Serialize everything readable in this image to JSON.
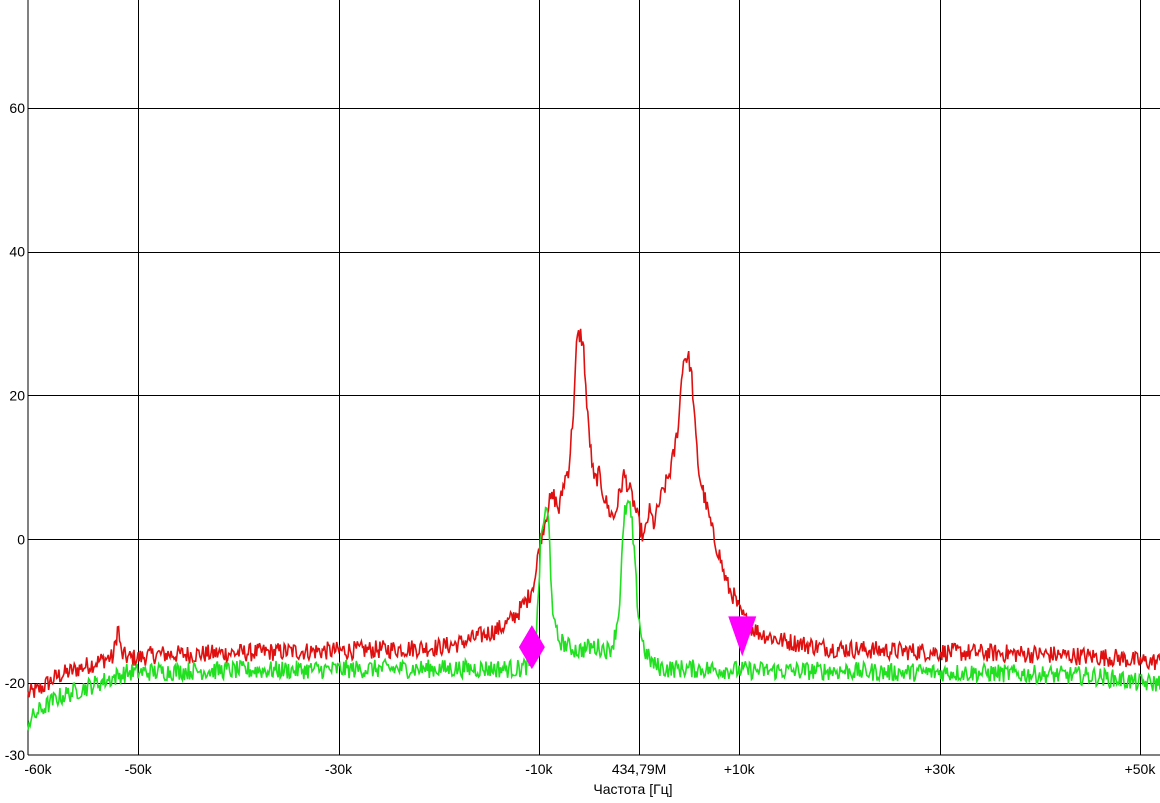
{
  "chart_data": {
    "type": "line",
    "xlabel": "Частота [Гц]",
    "ylabel": "",
    "xlim": [
      -61,
      52
    ],
    "ylim": [
      -30,
      75
    ],
    "grid": true,
    "x_ticks": [
      {
        "value": -60,
        "label": "-60k"
      },
      {
        "value": -50,
        "label": "-50k"
      },
      {
        "value": -30,
        "label": "-30k"
      },
      {
        "value": -10,
        "label": "-10k"
      },
      {
        "value": 0,
        "label": "434,79M"
      },
      {
        "value": 10,
        "label": "+10k"
      },
      {
        "value": 30,
        "label": "+30k"
      },
      {
        "value": 50,
        "label": "+50k"
      }
    ],
    "x_grid": [
      -50,
      -30,
      -10,
      0,
      10,
      30,
      50
    ],
    "y_ticks": [
      {
        "value": 60,
        "label": "60"
      },
      {
        "value": 40,
        "label": "40"
      },
      {
        "value": 20,
        "label": "20"
      },
      {
        "value": 0,
        "label": "0"
      },
      {
        "value": -20,
        "label": "-20"
      },
      {
        "value": -30,
        "label": "-30"
      }
    ],
    "y_grid": [
      60,
      40,
      20,
      0,
      -20
    ],
    "series": [
      {
        "color": "#e01010",
        "points": [
          [
            -61,
            -21.5
          ],
          [
            -60,
            -21
          ],
          [
            -59,
            -20
          ],
          [
            -58,
            -19
          ],
          [
            -57,
            -18.5
          ],
          [
            -56,
            -18
          ],
          [
            -55,
            -17.5
          ],
          [
            -54,
            -17
          ],
          [
            -53,
            -16.5
          ],
          [
            -52.5,
            -16.5
          ],
          [
            -52,
            -12
          ],
          [
            -51.7,
            -16
          ],
          [
            -51,
            -16.5
          ],
          [
            -50,
            -16.5
          ],
          [
            -49,
            -16.2
          ],
          [
            -48,
            -16
          ],
          [
            -45,
            -16
          ],
          [
            -40,
            -15.8
          ],
          [
            -35,
            -15.6
          ],
          [
            -30,
            -15.5
          ],
          [
            -25,
            -15.3
          ],
          [
            -20,
            -15
          ],
          [
            -18,
            -14.5
          ],
          [
            -16,
            -13.5
          ],
          [
            -14,
            -12.5
          ],
          [
            -13,
            -11.5
          ],
          [
            -12,
            -10
          ],
          [
            -11,
            -8
          ],
          [
            -10.3,
            -5
          ],
          [
            -10,
            -1
          ],
          [
            -9.5,
            2
          ],
          [
            -9,
            5
          ],
          [
            -8.5,
            6
          ],
          [
            -8,
            4
          ],
          [
            -7.5,
            8
          ],
          [
            -7,
            10
          ],
          [
            -6.5,
            19
          ],
          [
            -6.2,
            28
          ],
          [
            -5.8,
            28.5
          ],
          [
            -5.5,
            26
          ],
          [
            -5.2,
            18
          ],
          [
            -4.8,
            12
          ],
          [
            -4.5,
            8
          ],
          [
            -4,
            9
          ],
          [
            -3.5,
            6
          ],
          [
            -3,
            4
          ],
          [
            -2.5,
            3
          ],
          [
            -2,
            6
          ],
          [
            -1.5,
            9
          ],
          [
            -1,
            7
          ],
          [
            -0.5,
            5
          ],
          [
            0,
            2
          ],
          [
            0.5,
            0
          ],
          [
            1,
            4
          ],
          [
            1.5,
            2
          ],
          [
            2,
            5
          ],
          [
            2.5,
            7
          ],
          [
            3,
            9
          ],
          [
            3.5,
            12
          ],
          [
            4,
            17
          ],
          [
            4.3,
            24
          ],
          [
            4.6,
            25.5
          ],
          [
            5,
            25
          ],
          [
            5.3,
            22
          ],
          [
            5.6,
            15
          ],
          [
            6,
            9
          ],
          [
            6.5,
            6
          ],
          [
            7,
            3
          ],
          [
            7.5,
            0
          ],
          [
            8,
            -2
          ],
          [
            8.5,
            -5
          ],
          [
            9,
            -7
          ],
          [
            9.5,
            -8
          ],
          [
            10,
            -10
          ],
          [
            10.5,
            -11
          ],
          [
            11,
            -12
          ],
          [
            12,
            -13
          ],
          [
            13,
            -13.5
          ],
          [
            14,
            -14
          ],
          [
            16,
            -14.5
          ],
          [
            18,
            -15
          ],
          [
            20,
            -15.2
          ],
          [
            25,
            -15.5
          ],
          [
            30,
            -15.7
          ],
          [
            35,
            -15.8
          ],
          [
            40,
            -16
          ],
          [
            45,
            -16.3
          ],
          [
            48,
            -16.5
          ],
          [
            50,
            -17
          ],
          [
            52,
            -17
          ]
        ]
      },
      {
        "color": "#20e020",
        "points": [
          [
            -61,
            -25.5
          ],
          [
            -60,
            -24
          ],
          [
            -59,
            -23
          ],
          [
            -58,
            -22
          ],
          [
            -57,
            -21.5
          ],
          [
            -56,
            -21
          ],
          [
            -55,
            -20.5
          ],
          [
            -54,
            -20
          ],
          [
            -53,
            -19.5
          ],
          [
            -52,
            -19
          ],
          [
            -51,
            -18.5
          ],
          [
            -50,
            -18.5
          ],
          [
            -45,
            -18.3
          ],
          [
            -40,
            -18.2
          ],
          [
            -35,
            -18.2
          ],
          [
            -30,
            -18.1
          ],
          [
            -25,
            -18
          ],
          [
            -20,
            -18
          ],
          [
            -15,
            -18
          ],
          [
            -12,
            -18
          ],
          [
            -11,
            -17.5
          ],
          [
            -10.5,
            -16
          ],
          [
            -10.2,
            -12
          ],
          [
            -10,
            -6
          ],
          [
            -9.8,
            0
          ],
          [
            -9.5,
            3
          ],
          [
            -9.2,
            4
          ],
          [
            -9,
            2
          ],
          [
            -8.8,
            -5
          ],
          [
            -8.5,
            -12
          ],
          [
            -8,
            -14
          ],
          [
            -7,
            -15
          ],
          [
            -6,
            -15.5
          ],
          [
            -5,
            -15
          ],
          [
            -4,
            -15
          ],
          [
            -3,
            -15.5
          ],
          [
            -2.5,
            -14
          ],
          [
            -2,
            -10
          ],
          [
            -1.7,
            -2
          ],
          [
            -1.4,
            4
          ],
          [
            -1,
            5
          ],
          [
            -0.7,
            2
          ],
          [
            -0.4,
            -4
          ],
          [
            -0.1,
            -10
          ],
          [
            0.3,
            -14
          ],
          [
            0.7,
            -16
          ],
          [
            1.5,
            -17.5
          ],
          [
            2.5,
            -18
          ],
          [
            5,
            -18
          ],
          [
            10,
            -18.2
          ],
          [
            15,
            -18.3
          ],
          [
            20,
            -18.3
          ],
          [
            25,
            -18.5
          ],
          [
            30,
            -18.5
          ],
          [
            35,
            -18.6
          ],
          [
            40,
            -18.8
          ],
          [
            45,
            -19
          ],
          [
            48,
            -19.5
          ],
          [
            50,
            -20
          ],
          [
            52,
            -20
          ]
        ]
      }
    ],
    "markers": [
      {
        "shape": "diamond",
        "color": "#ff00ff",
        "x": -10.7,
        "y": -15
      },
      {
        "shape": "down-triangle",
        "color": "#ff00ff",
        "x": 10.3,
        "y": -13.5
      }
    ]
  }
}
